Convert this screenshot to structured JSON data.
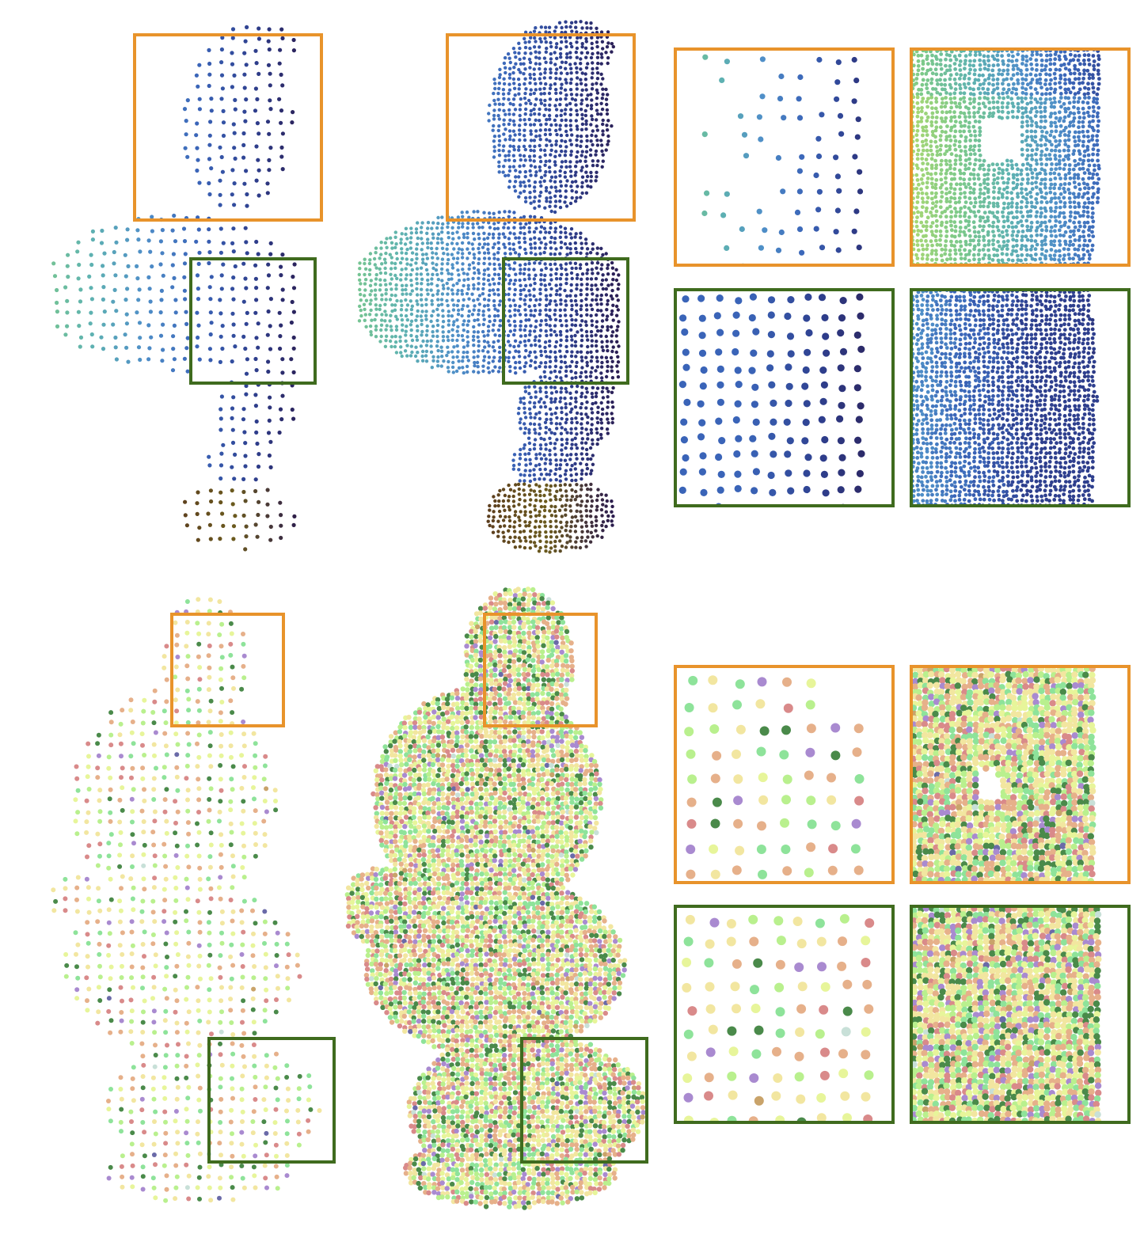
{
  "colors": {
    "highlight_box_1": "#e8932b",
    "highlight_box_2": "#3f6b1e",
    "row1_palette": [
      "#2a1b4e",
      "#2e3f8e",
      "#3a64b8",
      "#4f8fc8",
      "#5fb3b0",
      "#7cc98a",
      "#a8d873",
      "#5a3a1e"
    ],
    "row2_palette": [
      "#f2e6a0",
      "#e7f59a",
      "#b9f08e",
      "#8ee39a",
      "#4a8a4a",
      "#e6b08a",
      "#d98a8a",
      "#c9a36a",
      "#a98ad0",
      "#6a6aa8",
      "#c8e0d8"
    ]
  },
  "figure": {
    "rows": [
      {
        "subject": "bust",
        "panels": [
          "sparse-point-cloud",
          "dense-point-cloud",
          "zoom-sparse-orange",
          "zoom-dense-orange",
          "zoom-sparse-green",
          "zoom-dense-green"
        ]
      },
      {
        "subject": "statue",
        "panels": [
          "sparse-point-cloud",
          "dense-point-cloud",
          "zoom-sparse-orange",
          "zoom-dense-orange",
          "zoom-sparse-green",
          "zoom-dense-green"
        ]
      }
    ]
  }
}
